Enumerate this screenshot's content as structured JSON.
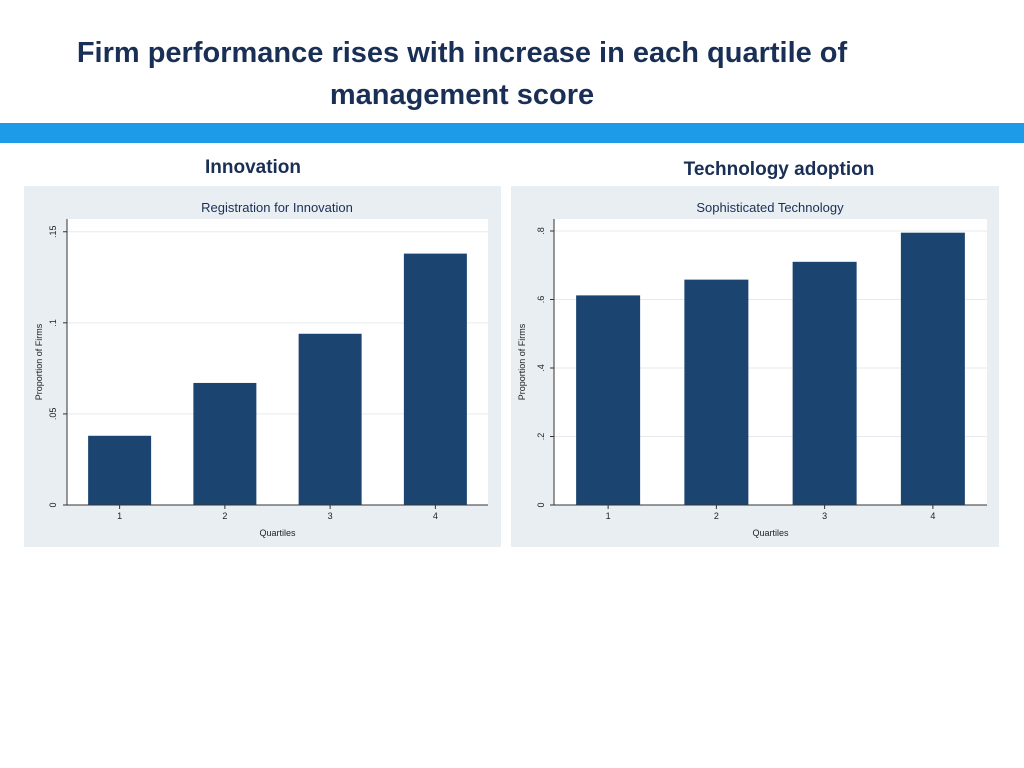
{
  "slide": {
    "title_line1": "Firm performance rises with increase in each quartile of",
    "title_line2": "management score",
    "accent_color": "#1e9be8"
  },
  "panels": {
    "left_heading": "Innovation",
    "right_heading": "Technology adoption"
  },
  "chart_data": [
    {
      "type": "bar",
      "title": "Registration for Innovation",
      "xlabel": "Quartiles",
      "ylabel": "Proportion of Firms",
      "categories": [
        "1",
        "2",
        "3",
        "4"
      ],
      "values": [
        0.038,
        0.067,
        0.094,
        0.138
      ],
      "ylim": [
        0,
        0.157
      ],
      "yticks": [
        0,
        0.05,
        0.1,
        0.15
      ],
      "ytick_labels": [
        "0",
        ".05",
        ".1",
        ".15"
      ],
      "grid": true,
      "bar_color": "#1c4470"
    },
    {
      "type": "bar",
      "title": "Sophisticated Technology",
      "xlabel": "Quartiles",
      "ylabel": "Proportion of Firms",
      "categories": [
        "1",
        "2",
        "3",
        "4"
      ],
      "values": [
        0.612,
        0.658,
        0.71,
        0.795
      ],
      "ylim": [
        0,
        0.835
      ],
      "yticks": [
        0,
        0.2,
        0.4,
        0.6,
        0.8
      ],
      "ytick_labels": [
        "0",
        ".2",
        ".4",
        ".6",
        ".8"
      ],
      "grid": true,
      "bar_color": "#1c4470"
    }
  ]
}
